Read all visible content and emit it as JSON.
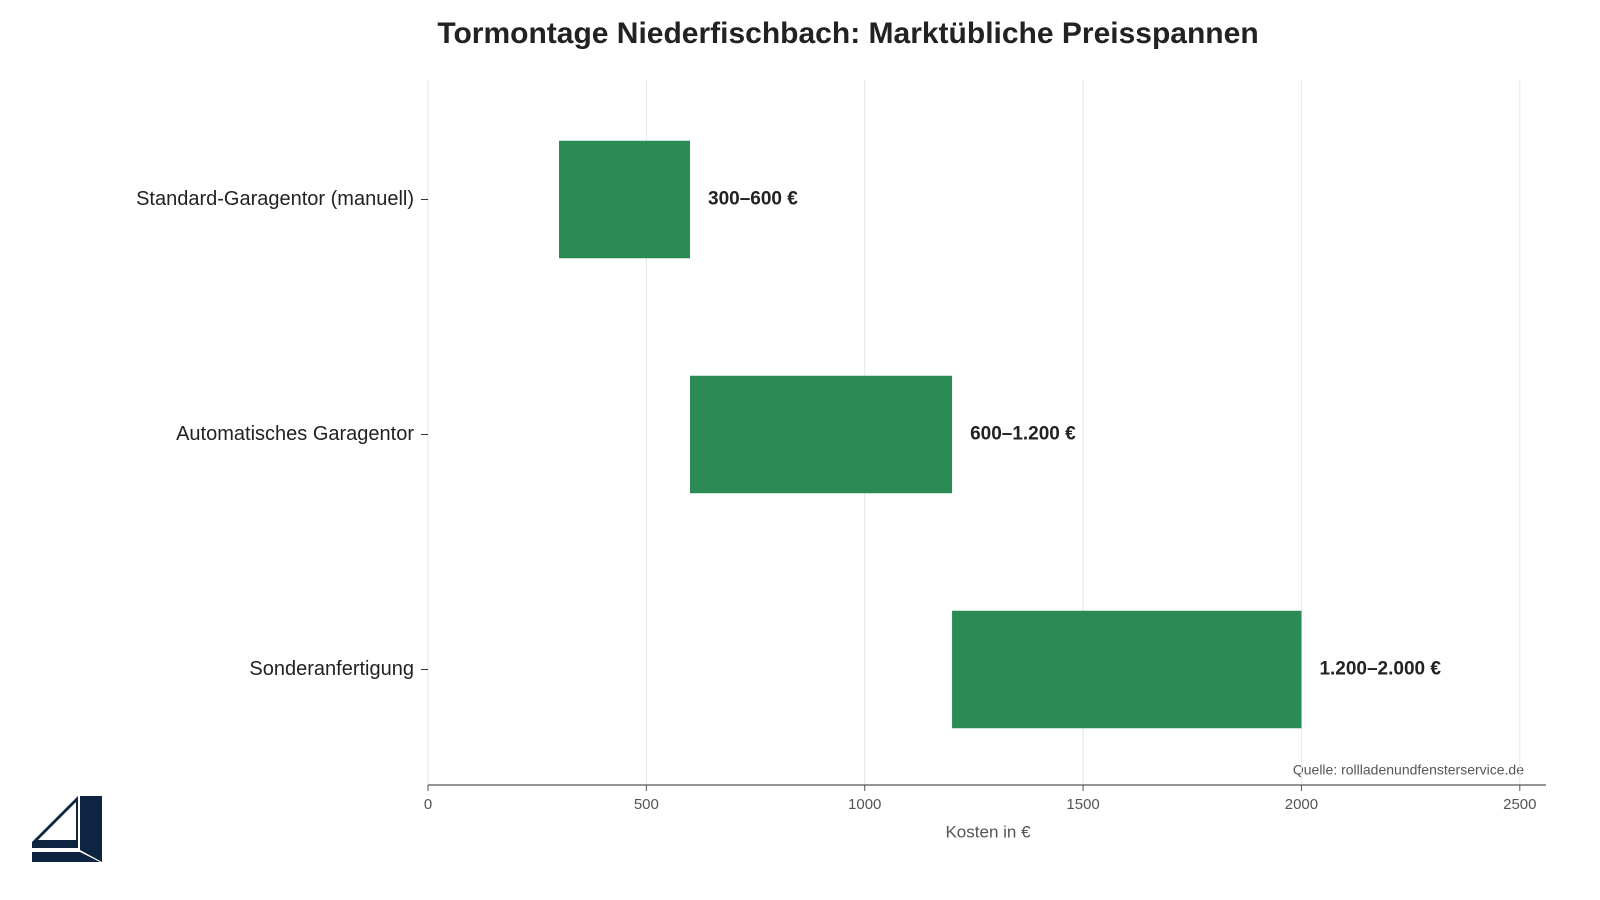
{
  "chart_data": {
    "type": "range-bar",
    "title": "Tormontage Niederfischbach: Marktübliche Preisspannen",
    "xlabel": "Kosten in €",
    "source": "Quelle: rollladenundfensterservice.de",
    "categories": [
      "Standard-Garagentor (manuell)",
      "Automatisches Garagentor",
      "Sonderanfertigung"
    ],
    "low": [
      300,
      600,
      1200
    ],
    "high": [
      600,
      1200,
      2000
    ],
    "value_labels": [
      "300–600 €",
      "600–1.200 €",
      "1.200–2.000 €"
    ],
    "color": "#23874f",
    "xlim": [
      0,
      2560
    ],
    "xticks": [
      0,
      500,
      1000,
      1500,
      2000,
      2500
    ],
    "grid": true
  }
}
